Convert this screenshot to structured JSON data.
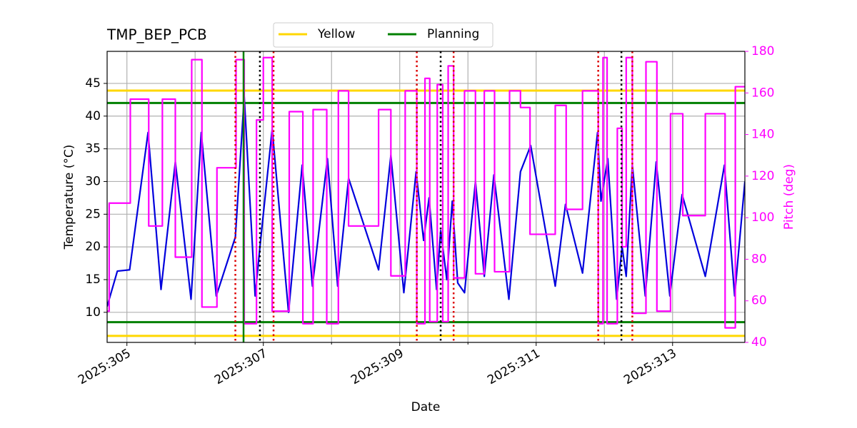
{
  "chart_data": {
    "type": "line",
    "title": "TMP_BEP_PCB",
    "x_label": "Date",
    "y_label": "Temperature (°C)",
    "y2_label": "Pitch (deg)",
    "xlim": [
      304.71,
      314.06
    ],
    "xticks": [
      {
        "value": 305,
        "label": "2025:305"
      },
      {
        "value": 307,
        "label": "2025:307"
      },
      {
        "value": 309,
        "label": "2025:309"
      },
      {
        "value": 311,
        "label": "2025:311"
      },
      {
        "value": 313,
        "label": "2025:313"
      }
    ],
    "xminor_ticks": [
      306,
      308,
      310,
      312
    ],
    "ylim": [
      5.4,
      49.9
    ],
    "yticks": [
      10,
      15,
      20,
      25,
      30,
      35,
      40,
      45
    ],
    "y2lim": [
      40,
      180
    ],
    "y2ticks": [
      40,
      60,
      80,
      100,
      120,
      140,
      160,
      180
    ],
    "y2_color": "#ff00ff",
    "grid": true,
    "legend": "upper center",
    "limit_lines": [
      {
        "name": "Yellow",
        "color": "#ffd700",
        "values": [
          43.9,
          6.4
        ]
      },
      {
        "name": "Planning",
        "color": "#008000",
        "values": [
          42,
          8.5
        ]
      }
    ],
    "vlines": [
      {
        "color": "#dd0000",
        "style": "dotted",
        "x": [
          306.59,
          307.15,
          309.25,
          309.79,
          311.91,
          312.41
        ]
      },
      {
        "color": "#000000",
        "style": "dotted",
        "x": [
          306.95,
          309.6,
          312.25
        ]
      },
      {
        "color": "#008000",
        "style": "solid",
        "x": [
          306.71
        ]
      }
    ],
    "series": [
      {
        "color": "#0000dd",
        "axis": "y",
        "x": [
          304.71,
          304.86,
          305.04,
          305.31,
          305.5,
          305.71,
          305.94,
          306.09,
          306.31,
          306.59,
          306.72,
          306.88,
          306.96,
          307.13,
          307.37,
          307.57,
          307.72,
          307.94,
          308.09,
          308.25,
          308.69,
          308.87,
          309.06,
          309.24,
          309.35,
          309.43,
          309.54,
          309.6,
          309.69,
          309.77,
          309.85,
          309.95,
          310.11,
          310.24,
          310.38,
          310.6,
          310.77,
          310.92,
          311.28,
          311.43,
          311.68,
          311.9,
          311.95,
          312.05,
          312.18,
          312.26,
          312.32,
          312.41,
          312.6,
          312.76,
          312.96,
          313.14,
          313.48,
          313.76,
          313.91,
          314.06
        ],
        "values": [
          10.9,
          16.3,
          16.5,
          37.5,
          13.5,
          33,
          12,
          37.5,
          12.5,
          21.5,
          43,
          12.5,
          21,
          38,
          10,
          32.5,
          14,
          33.5,
          14,
          30.5,
          16.5,
          34,
          13,
          31.5,
          21,
          27.5,
          13.5,
          22.5,
          15,
          27,
          14.5,
          13,
          30,
          15.5,
          31,
          12,
          31.5,
          35.5,
          14,
          26.5,
          16,
          37.5,
          27,
          33.5,
          12,
          20,
          15.5,
          32.5,
          12.5,
          33,
          12.5,
          28,
          15.5,
          32.5,
          12.5,
          30
        ]
      },
      {
        "color": "#ff00ff",
        "axis": "y2",
        "step": "post",
        "x": [
          304.71,
          304.74,
          305.05,
          305.32,
          305.52,
          305.71,
          305.95,
          306.1,
          306.32,
          306.6,
          306.72,
          306.9,
          307,
          307.13,
          307.38,
          307.58,
          307.73,
          307.93,
          308.1,
          308.25,
          308.69,
          308.87,
          309.08,
          309.25,
          309.37,
          309.44,
          309.55,
          309.63,
          309.71,
          309.79,
          309.95,
          310.11,
          310.24,
          310.39,
          310.61,
          310.77,
          310.91,
          311.28,
          311.44,
          311.68,
          311.91,
          311.98,
          312.04,
          312.19,
          312.26,
          312.32,
          312.41,
          312.61,
          312.77,
          312.97,
          313.15,
          313.48,
          313.77,
          313.92
        ],
        "values": [
          55,
          107,
          157,
          96,
          157,
          81,
          176,
          57,
          124,
          176,
          49,
          147,
          177,
          55,
          151,
          49,
          152,
          49,
          161,
          96,
          152,
          72,
          161,
          49,
          167,
          50,
          164,
          50,
          173,
          71,
          161,
          73,
          161,
          74,
          161,
          153,
          92,
          154,
          104,
          161,
          49,
          177,
          49,
          143,
          86,
          177,
          54,
          175,
          55,
          150,
          101,
          150,
          47,
          163
        ]
      }
    ]
  }
}
